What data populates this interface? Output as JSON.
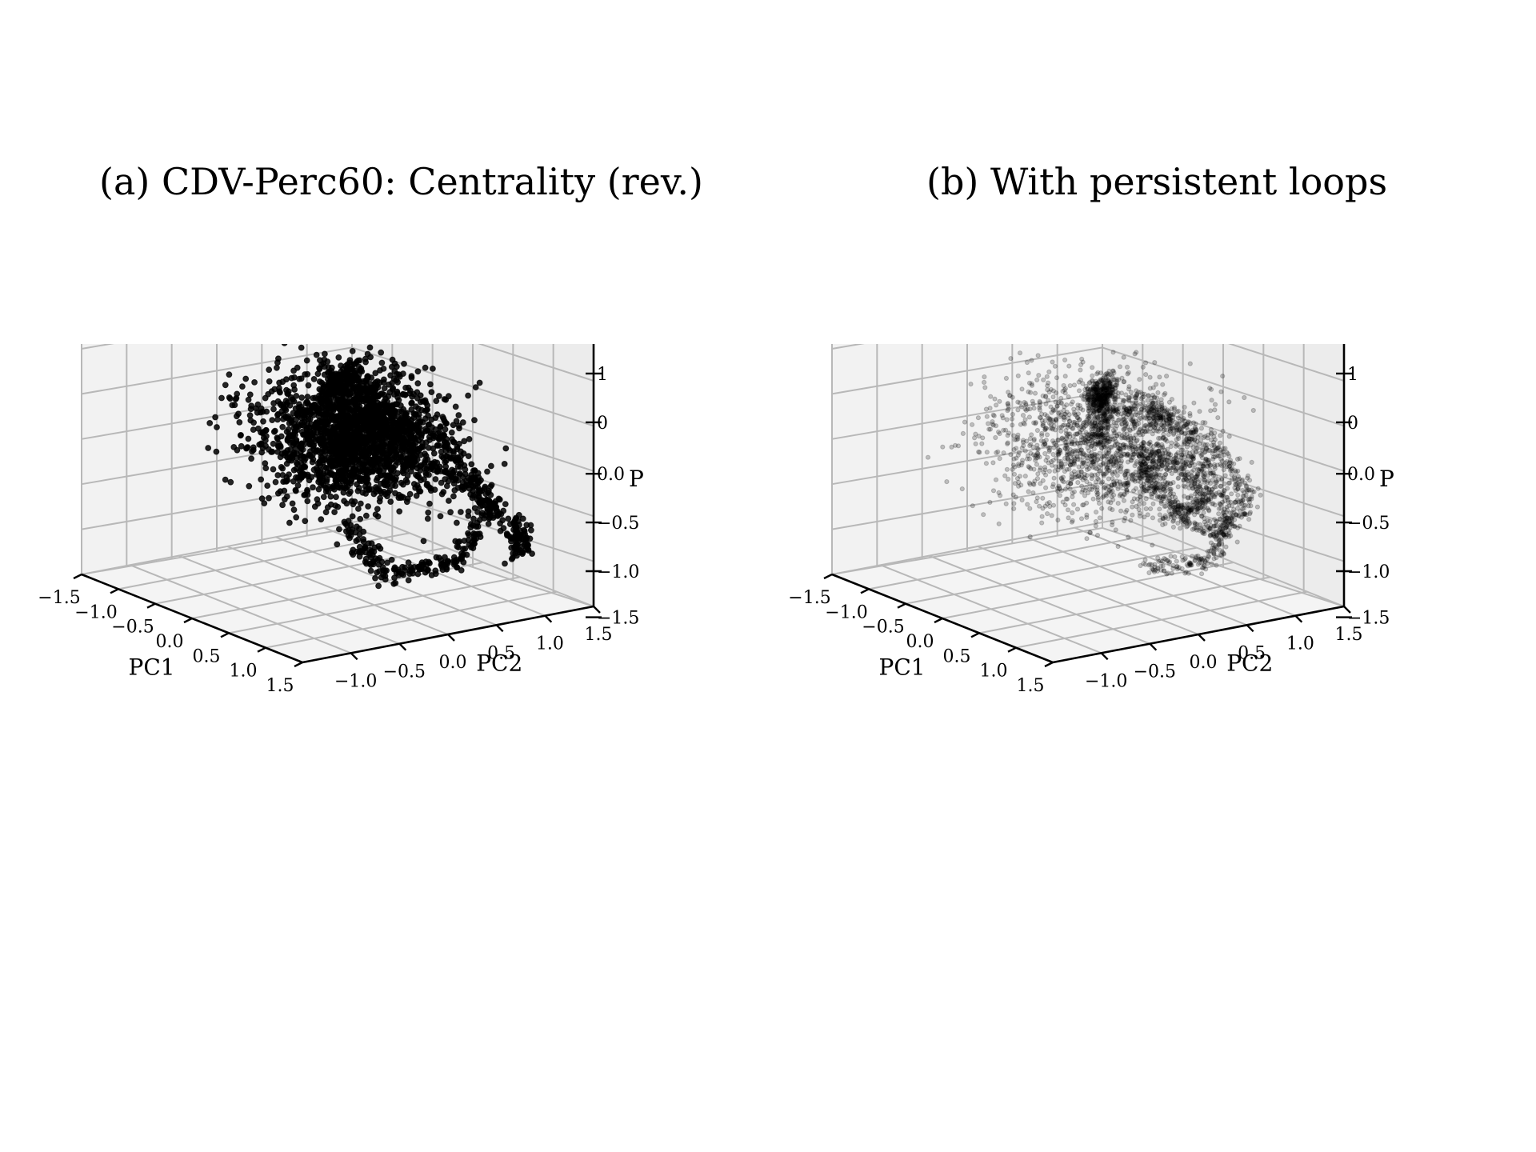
{
  "chart_data": [
    {
      "type": "scatter",
      "projection": "3d",
      "title": "(a) CDV-Perc60: Centrality (rev.)",
      "xlabel": "PC1",
      "ylabel": "PC2",
      "zlabel": "P",
      "xlim": [
        -1.5,
        1.5
      ],
      "ylim": [
        -1.5,
        1.5
      ],
      "zlim": [
        -1.5,
        1.5
      ],
      "x_ticks": [
        "−1.5",
        "−1.0",
        "−0.5",
        "0.0",
        "0.5",
        "1.0",
        "1.5"
      ],
      "y_ticks": [
        "−1.0",
        "−0.5",
        "0.0",
        "0.5",
        "1.0",
        "1.5"
      ],
      "z_ticks": [
        "1",
        "0",
        "0.0",
        "−0.5",
        "−1.0",
        "−1.5"
      ],
      "grid": true,
      "marker_color": "#000000",
      "marker_alpha": 0.85,
      "series": [
        {
          "loops": [
            {
              "path": [
                [
                  -0.9,
                  0.9,
                  0.45
                ],
                [
                  -0.3,
                  0.2,
                  0.7
                ],
                [
                  0.3,
                  -0.2,
                  0.75
                ],
                [
                  0.8,
                  0.2,
                  0.5
                ]
              ]
            },
            {
              "path": [
                [
                  0.3,
                  -0.3,
                  0.7
                ],
                [
                  0.6,
                  0.6,
                  0.3
                ],
                [
                  0.9,
                  0.9,
                  -0.4
                ],
                [
                  0.7,
                  0.7,
                  -1.1
                ],
                [
                  0.3,
                  0.3,
                  -1.3
                ],
                [
                  0.0,
                  0.1,
                  -0.8
                ]
              ]
            },
            {
              "path": [
                [
                  -0.8,
                  0.8,
                  0.4
                ],
                [
                  -1.1,
                  1.2,
                  -0.1
                ],
                [
                  -1.2,
                  1.0,
                  -0.6
                ],
                [
                  -0.9,
                  0.7,
                  -0.3
                ]
              ]
            },
            {
              "path": [
                [
                  0.2,
                  -0.5,
                  0.7
                ],
                [
                  0.8,
                  -0.2,
                  0.6
                ],
                [
                  1.2,
                  0.4,
                  0.0
                ],
                [
                  1.3,
                  0.9,
                  -0.6
                ],
                [
                  1.0,
                  1.1,
                  -1.0
                ]
              ]
            }
          ],
          "cloud_center": [
            0.1,
            0.1,
            0.2
          ],
          "cloud_spread": [
            0.75,
            0.75,
            0.55
          ]
        }
      ]
    },
    {
      "type": "scatter",
      "projection": "3d",
      "title": "(b) With persistent loops",
      "xlabel": "PC1",
      "ylabel": "PC2",
      "zlabel": "P",
      "xlim": [
        -1.5,
        1.5
      ],
      "ylim": [
        -1.5,
        1.5
      ],
      "zlim": [
        -1.5,
        1.5
      ],
      "x_ticks": [
        "−1.5",
        "−1.0",
        "−0.5",
        "0.0",
        "0.5",
        "1.0",
        "1.5"
      ],
      "y_ticks": [
        "−1.0",
        "−0.5",
        "0.0",
        "0.5",
        "1.0",
        "1.5"
      ],
      "z_ticks": [
        "1",
        "0",
        "0.0",
        "−0.5",
        "−1.0",
        "−1.5"
      ],
      "grid": true,
      "marker_color": "#000000",
      "marker_alpha": 0.22,
      "series": [
        {
          "loops": [
            {
              "path": [
                [
                  -1.0,
                  1.0,
                  0.35
                ],
                [
                  -0.3,
                  0.3,
                  0.55
                ],
                [
                  0.3,
                  -0.1,
                  0.65
                ],
                [
                  0.7,
                  0.3,
                  0.55
                ]
              ]
            },
            {
              "path": [
                [
                  -0.9,
                  0.8,
                  -0.3
                ],
                [
                  -0.5,
                  0.5,
                  0.2
                ],
                [
                  -0.1,
                  0.2,
                  0.6
                ],
                [
                  0.3,
                  0.0,
                  0.8
                ]
              ]
            },
            {
              "path": [
                [
                  0.5,
                  0.2,
                  0.7
                ],
                [
                  0.9,
                  0.6,
                  0.3
                ],
                [
                  1.0,
                  0.9,
                  -0.3
                ],
                [
                  0.8,
                  0.8,
                  -0.8
                ],
                [
                  0.4,
                  0.5,
                  -0.6
                ]
              ]
            },
            {
              "path": [
                [
                  0.4,
                  0.2,
                  0.8
                ],
                [
                  0.6,
                  0.6,
                  0.2
                ],
                [
                  0.7,
                  0.9,
                  -0.5
                ],
                [
                  0.5,
                  0.9,
                  -1.2
                ],
                [
                  0.1,
                  0.5,
                  -1.3
                ]
              ]
            },
            {
              "path": [
                [
                  0.3,
                  0.3,
                  0.1
                ],
                [
                  0.6,
                  0.5,
                  0.0
                ],
                [
                  0.7,
                  0.7,
                  -0.4
                ],
                [
                  0.5,
                  0.6,
                  -0.6
                ],
                [
                  0.3,
                  0.4,
                  -0.3
                ],
                [
                  0.35,
                  0.35,
                  0.0
                ]
              ]
            }
          ],
          "cloud_center": [
            0.1,
            0.1,
            0.1
          ],
          "cloud_spread": [
            0.8,
            0.8,
            0.6
          ]
        }
      ]
    }
  ]
}
